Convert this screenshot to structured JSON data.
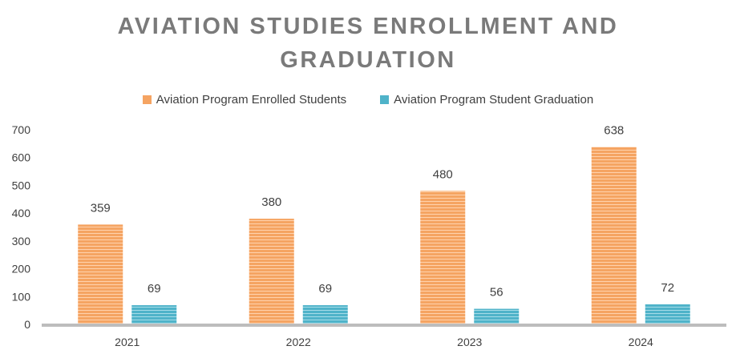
{
  "chart_data": {
    "type": "bar",
    "title_line1": "AVIATION STUDIES ENROLLMENT AND",
    "title_line2": "GRADUATION",
    "categories": [
      "2021",
      "2022",
      "2023",
      "2024"
    ],
    "series": [
      {
        "name": "Aviation Program Enrolled Students",
        "values": [
          359,
          380,
          480,
          638
        ],
        "color": "#f5a462",
        "stripe": "#ffd2ad"
      },
      {
        "name": "Aviation Program Student Graduation",
        "values": [
          69,
          69,
          56,
          72
        ],
        "color": "#4fb3c9",
        "stripe": "#a6dce8"
      }
    ],
    "ylim": [
      0,
      700
    ],
    "yticks": [
      0,
      100,
      200,
      300,
      400,
      500,
      600,
      700
    ],
    "grid": false,
    "legend_position": "top"
  }
}
